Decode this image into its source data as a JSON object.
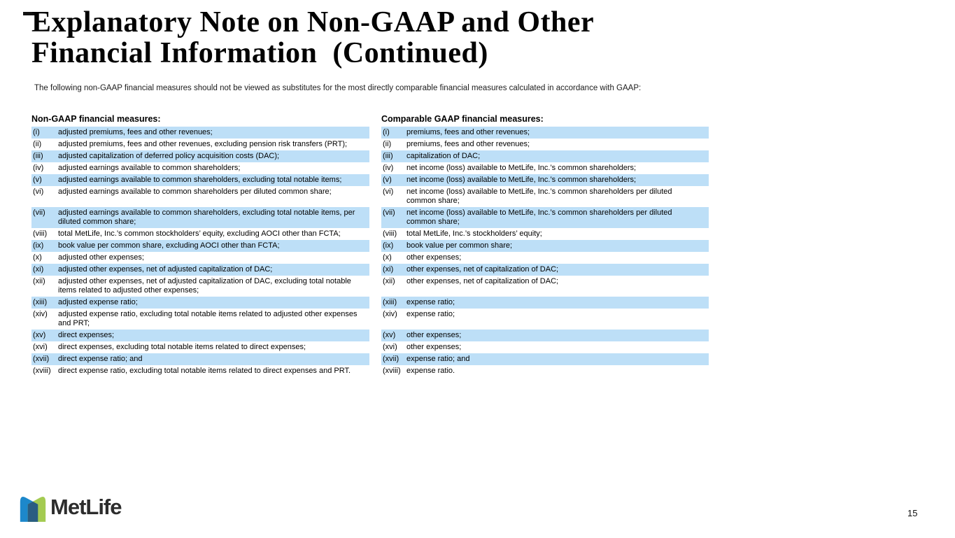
{
  "slide": {
    "title_line1": "Explanatory Note on Non-GAAP and Other",
    "title_line2": "Financial Information  (Continued)",
    "subtitle": "The following non-GAAP financial measures should not be viewed as substitutes for the most directly comparable financial measures calculated in accordance with GAAP:",
    "page_number": "15",
    "logo_text": "MetLife"
  },
  "table": {
    "left_header": "Non-GAAP financial measures:",
    "right_header": "Comparable GAAP financial measures:",
    "rows": [
      {
        "num": "(i)",
        "left": "adjusted premiums, fees and other revenues;",
        "right": "premiums, fees and other revenues;",
        "highlight": true
      },
      {
        "num": "(ii)",
        "left": "adjusted premiums, fees and other revenues, excluding pension risk transfers (PRT);",
        "right": "premiums, fees and other revenues;",
        "highlight": false
      },
      {
        "num": "(iii)",
        "left": "adjusted capitalization of deferred policy acquisition costs (DAC);",
        "right": "capitalization of DAC;",
        "highlight": true
      },
      {
        "num": "(iv)",
        "left": "adjusted earnings available to common shareholders;",
        "right": "net income (loss) available to MetLife, Inc.’s common shareholders;",
        "highlight": false
      },
      {
        "num": "(v)",
        "left": "adjusted earnings available to common shareholders, excluding total notable items;",
        "right": "net income (loss) available to MetLife, Inc.’s common shareholders;",
        "highlight": true
      },
      {
        "num": "(vi)",
        "left": "adjusted earnings available to common shareholders per diluted common share;",
        "right": "net income (loss) available to MetLife, Inc.’s common shareholders per diluted common share;",
        "highlight": false
      },
      {
        "num": "(vii)",
        "left": "adjusted earnings available to common shareholders, excluding total notable items, per diluted common share;",
        "right": "net income (loss) available to MetLife, Inc.’s common shareholders per diluted common share;",
        "highlight": true
      },
      {
        "num": "(viii)",
        "left": "total MetLife, Inc.’s common stockholders’ equity, excluding AOCI other than FCTA;",
        "right": "total MetLife, Inc.’s stockholders’ equity;",
        "highlight": false
      },
      {
        "num": "(ix)",
        "left": "book value per common share, excluding AOCI other than FCTA;",
        "right": "book value per common share;",
        "highlight": true
      },
      {
        "num": "(x)",
        "left": "adjusted other expenses;",
        "right": "other expenses;",
        "highlight": false
      },
      {
        "num": "(xi)",
        "left": "adjusted other expenses, net of adjusted capitalization of DAC;",
        "right": "other expenses, net of capitalization of DAC;",
        "highlight": true
      },
      {
        "num": "(xii)",
        "left": "adjusted other expenses, net of adjusted capitalization of DAC, excluding total notable items related to adjusted other expenses;",
        "right": "other expenses, net of capitalization of DAC;",
        "highlight": false
      },
      {
        "num": "(xiii)",
        "left": "adjusted expense ratio;",
        "right": "expense ratio;",
        "highlight": true
      },
      {
        "num": "(xiv)",
        "left": "adjusted expense ratio, excluding total notable items related to adjusted other expenses and PRT;",
        "right": "expense ratio;",
        "highlight": false
      },
      {
        "num": "(xv)",
        "left": "direct expenses;",
        "right": "other expenses;",
        "highlight": true
      },
      {
        "num": "(xvi)",
        "left": "direct expenses, excluding total notable items related to direct expenses;",
        "right": "other expenses;",
        "highlight": false
      },
      {
        "num": "(xvii)",
        "left": "direct expense ratio; and",
        "right": "expense ratio; and",
        "highlight": true
      },
      {
        "num": "(xviii)",
        "left": "direct expense ratio, excluding total notable items related to direct expenses and PRT.",
        "right": "expense ratio.",
        "highlight": false
      }
    ]
  },
  "colors": {
    "row_highlight": "#BDDFF7",
    "logo_blue": "#1D88CB",
    "logo_green": "#A4CB51",
    "logo_overlap": "#2A5D82",
    "logo_text": "#2D2D2D"
  }
}
